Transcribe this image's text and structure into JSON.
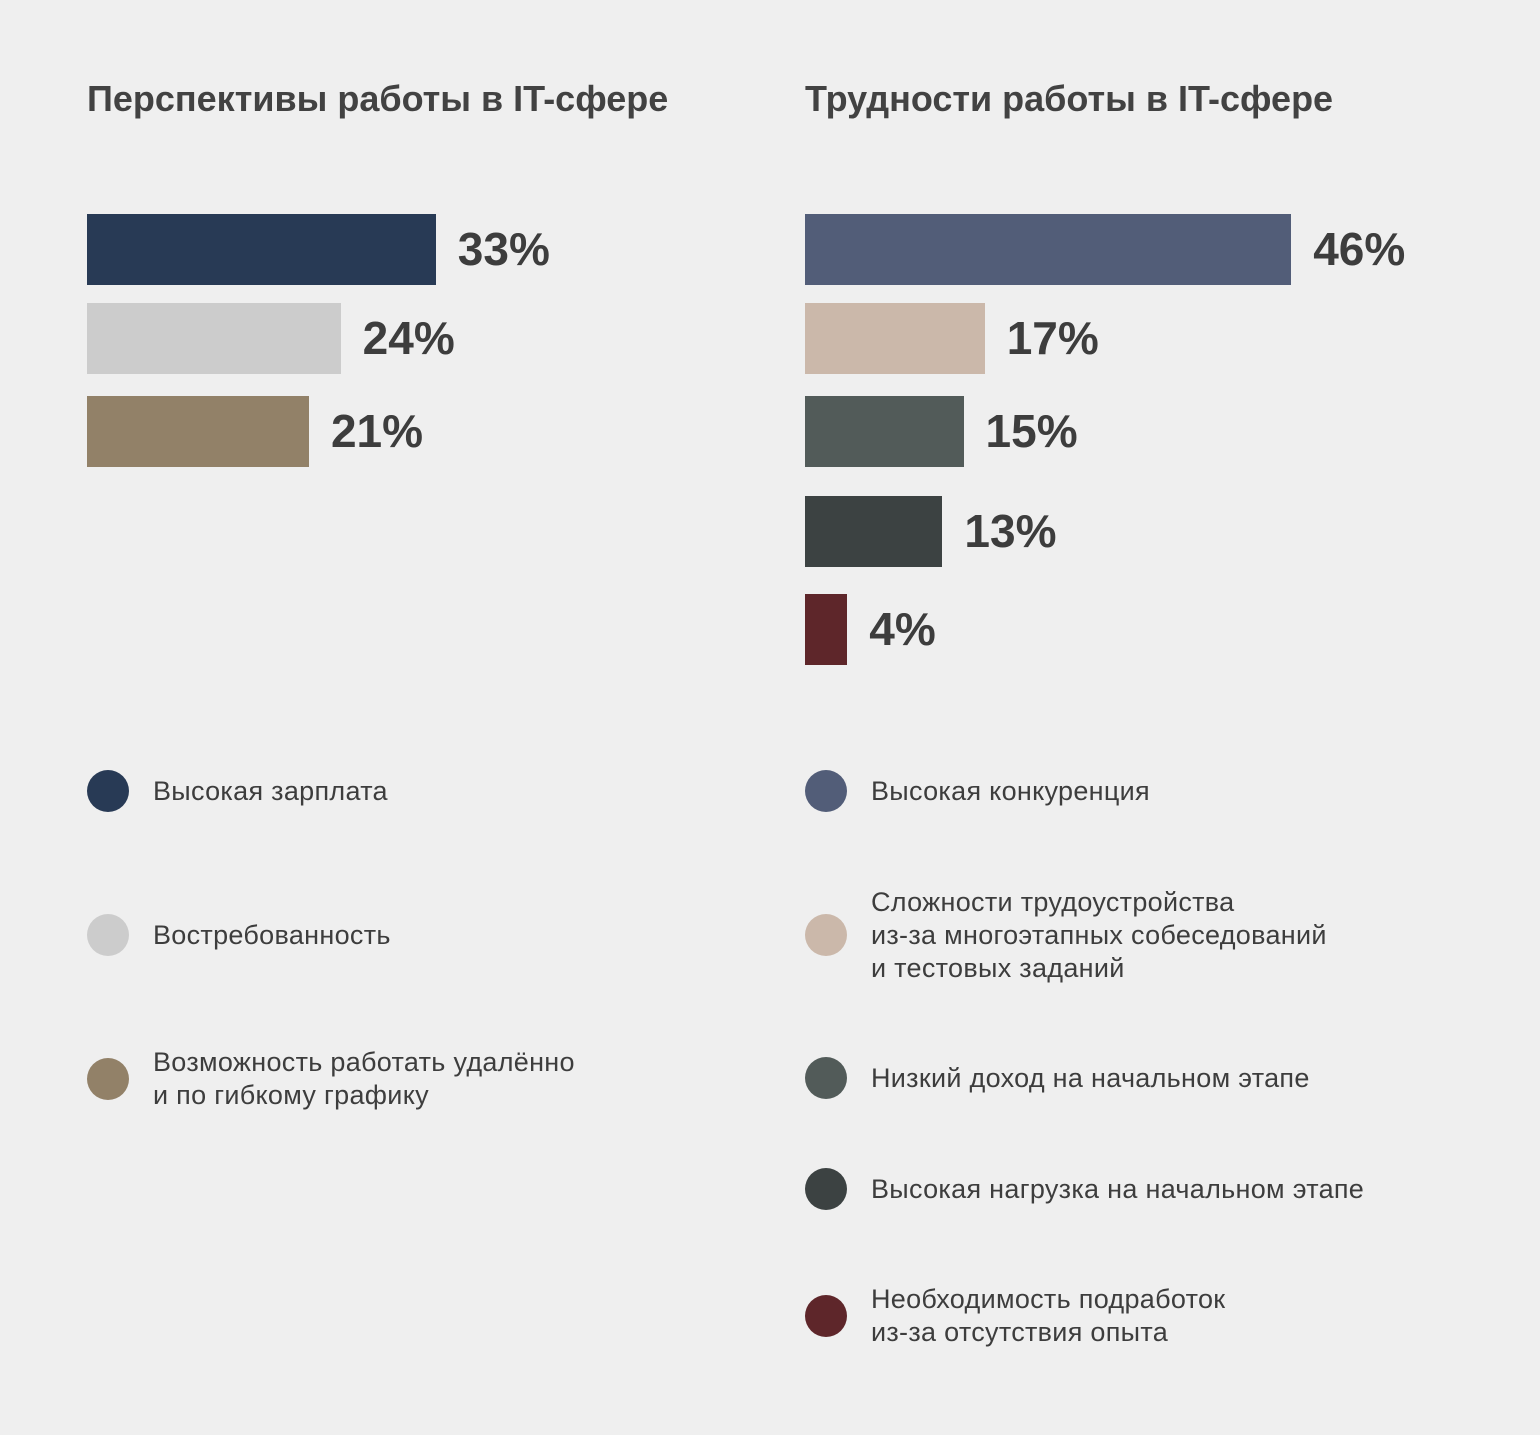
{
  "chart_data": [
    {
      "type": "bar",
      "orientation": "horizontal",
      "title": "Перспективы работы в IT-сфере",
      "unit": "%",
      "categories": [
        "Высокая зарплата",
        "Востребованность",
        "Возможность работать удалённо\nи по гибкому графику"
      ],
      "values": [
        33,
        24,
        21
      ],
      "value_labels": [
        "33%",
        "24%",
        "21%"
      ],
      "colors": [
        "#283a55",
        "#cccccc",
        "#928168"
      ],
      "legend_placement": "bottom"
    },
    {
      "type": "bar",
      "orientation": "horizontal",
      "title": "Трудности работы в IT-сфере",
      "unit": "%",
      "categories": [
        "Высокая конкуренция",
        "Сложности трудоустройства\nиз-за многоэтапных собеседований\nи тестовых заданий",
        "Низкий доход на начальном этапе",
        "Высокая нагрузка на начальном этапе",
        "Необходимость подработок\nиз-за отсутствия опыта"
      ],
      "values": [
        46,
        17,
        15,
        13,
        4
      ],
      "value_labels": [
        "46%",
        "17%",
        "15%",
        "13%",
        "4%"
      ],
      "colors": [
        "#525d78",
        "#cbb8aa",
        "#525b59",
        "#3c4242",
        "#5e262a"
      ],
      "legend_placement": "bottom"
    }
  ]
}
